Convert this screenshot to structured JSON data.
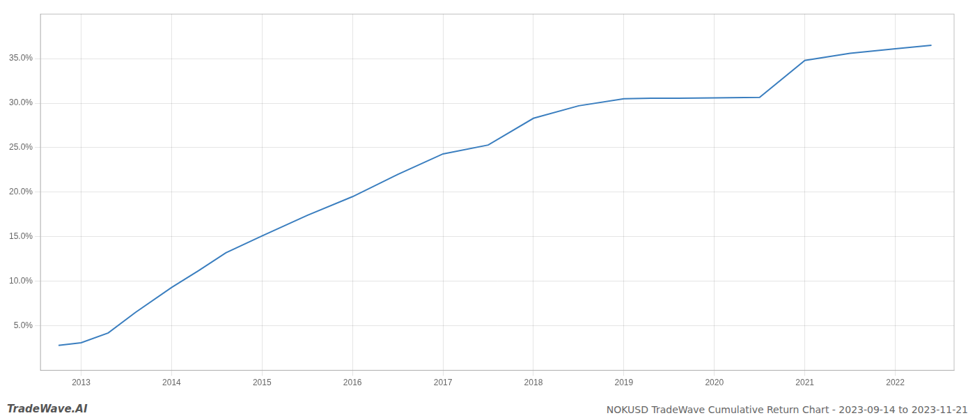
{
  "chart_data": {
    "type": "line",
    "title": "NOKUSD TradeWave Cumulative Return Chart - 2023-09-14 to 2023-11-21",
    "annotations": [
      "TradeWave.AI"
    ],
    "x": [
      2012.75,
      2013.0,
      2013.3,
      2013.6,
      2014.0,
      2014.3,
      2014.6,
      2015.0,
      2015.5,
      2016.0,
      2016.5,
      2017.0,
      2017.5,
      2018.0,
      2018.5,
      2019.0,
      2019.3,
      2019.6,
      2020.0,
      2020.5,
      2021.0,
      2021.5,
      2022.0,
      2022.4
    ],
    "values": [
      2.8,
      3.1,
      4.2,
      6.5,
      9.3,
      11.2,
      13.2,
      15.1,
      17.4,
      19.5,
      22.0,
      24.3,
      25.3,
      28.3,
      29.7,
      30.5,
      30.55,
      30.55,
      30.6,
      30.65,
      34.8,
      35.6,
      36.1,
      36.5
    ],
    "color": "#3a7ebf",
    "marker": "none",
    "xlim": [
      2012.55,
      2022.65
    ],
    "xticks": [
      2013,
      2014,
      2015,
      2016,
      2017,
      2018,
      2019,
      2020,
      2021,
      2022
    ],
    "ylim": [
      0,
      40
    ],
    "yticks": [
      {
        "value": 5.0,
        "label": "5.0%"
      },
      {
        "value": 10.0,
        "label": "10.0%"
      },
      {
        "value": 15.0,
        "label": "15.0%"
      },
      {
        "value": 20.0,
        "label": "20.0%"
      },
      {
        "value": 25.0,
        "label": "25.0%"
      },
      {
        "value": 30.0,
        "label": "30.0%"
      },
      {
        "value": 35.0,
        "label": "35.0%"
      }
    ],
    "grid": true
  }
}
